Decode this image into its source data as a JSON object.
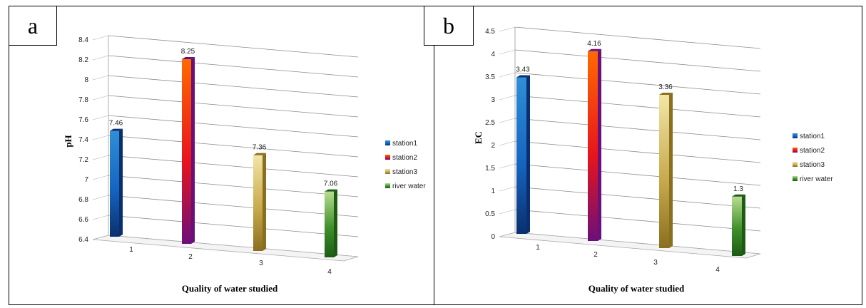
{
  "panels": [
    {
      "letter": "a",
      "chart_data": {
        "type": "bar",
        "categories": [
          "1",
          "2",
          "3",
          "4"
        ],
        "series": [
          {
            "name": "station1",
            "values": [
              7.46,
              null,
              null,
              null
            ]
          },
          {
            "name": "station2",
            "values": [
              null,
              8.25,
              null,
              null
            ]
          },
          {
            "name": "station3",
            "values": [
              null,
              null,
              7.36,
              null
            ]
          },
          {
            "name": "river water",
            "values": [
              null,
              null,
              null,
              7.06
            ]
          }
        ],
        "data_labels": [
          "7.46",
          "8.25",
          "7.36",
          "7.06"
        ],
        "xlabel": "Quality of water studied",
        "ylabel": "pH",
        "ylim": [
          6.4,
          8.4
        ],
        "yticks": [
          "6.4",
          "6.6",
          "6.8",
          "7",
          "7.2",
          "7.4",
          "7.6",
          "7.8",
          "8",
          "8.2",
          "8.4"
        ],
        "grid": true,
        "legend": "right"
      }
    },
    {
      "letter": "b",
      "chart_data": {
        "type": "bar",
        "categories": [
          "1",
          "2",
          "3",
          "4"
        ],
        "series": [
          {
            "name": "station1",
            "values": [
              3.43,
              null,
              null,
              null
            ]
          },
          {
            "name": "station2",
            "values": [
              null,
              4.16,
              null,
              null
            ]
          },
          {
            "name": "station3",
            "values": [
              null,
              null,
              3.36,
              null
            ]
          },
          {
            "name": "river water",
            "values": [
              null,
              null,
              null,
              1.3
            ]
          }
        ],
        "data_labels": [
          "3.43",
          "4.16",
          "3.36",
          "1.3"
        ],
        "xlabel": "Quality of water studied",
        "ylabel": "EC",
        "ylim": [
          0,
          4.5
        ],
        "yticks": [
          "0",
          "0.5",
          "1",
          "1.5",
          "2",
          "2.5",
          "3",
          "3.5",
          "4",
          "4.5"
        ],
        "grid": true,
        "legend": "right"
      }
    }
  ],
  "colors": {
    "station1": [
      "#2f8fd8",
      "#1565c0",
      "#0a2f6e"
    ],
    "station2": [
      "#ff6a00",
      "#e8141c",
      "#6b0f7a"
    ],
    "station3": [
      "#f2e6a6",
      "#c9aa4d",
      "#8a6f1f"
    ],
    "river water": [
      "#b7dd8f",
      "#3f8f2a",
      "#1d5b15"
    ]
  }
}
